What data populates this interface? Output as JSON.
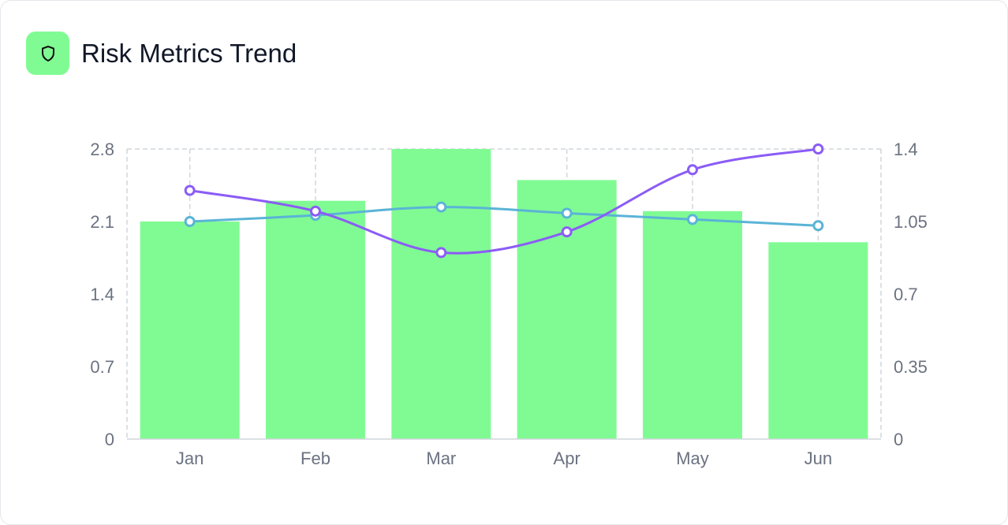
{
  "header": {
    "title": "Risk Metrics Trend",
    "icon": "shield-icon"
  },
  "chart_data": {
    "type": "bar",
    "title": "Risk Metrics Trend",
    "categories": [
      "Jan",
      "Feb",
      "Mar",
      "Apr",
      "May",
      "Jun"
    ],
    "left_axis": {
      "ylim": [
        0,
        2.8
      ],
      "ticks": [
        "0",
        "0.7",
        "1.4",
        "2.1",
        "2.8"
      ]
    },
    "right_axis": {
      "ylim": [
        0,
        1.4
      ],
      "ticks": [
        "0",
        "0.35",
        "0.7",
        "1.05",
        "1.4"
      ]
    },
    "series": [
      {
        "name": "bars",
        "type": "bar",
        "axis": "left",
        "color": "#80fb93",
        "values": [
          2.1,
          2.3,
          2.8,
          2.5,
          2.2,
          1.9
        ]
      },
      {
        "name": "line-blue",
        "type": "line",
        "axis": "right",
        "color": "#5ab4d6",
        "values": [
          1.05,
          1.08,
          1.12,
          1.09,
          1.06,
          1.03
        ]
      },
      {
        "name": "line-purple",
        "type": "line",
        "axis": "right",
        "color": "#8b5cf6",
        "values": [
          1.2,
          1.1,
          0.9,
          1.0,
          1.3,
          1.4
        ]
      }
    ],
    "grid": true,
    "legend": "none"
  }
}
